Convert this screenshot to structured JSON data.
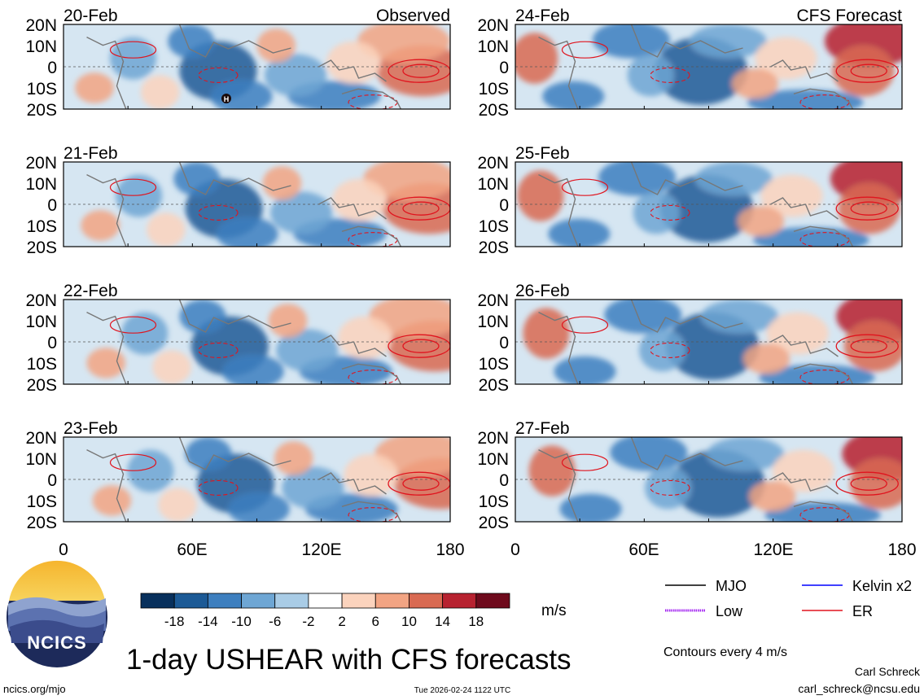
{
  "chart_data": {
    "type": "heatmap",
    "title": "1-day USHEAR with CFS forecasts",
    "variable": "USHEAR",
    "units": "m/s",
    "contour_note": "Contours every 4 m/s",
    "lat_ticks": [
      "20N",
      "10N",
      "0",
      "10S",
      "20S"
    ],
    "lon_ticks": [
      "0",
      "60E",
      "120E",
      "180"
    ],
    "lon_range": [
      0,
      180
    ],
    "lat_range": [
      -20,
      20
    ],
    "columns": [
      {
        "tag": "Observed",
        "dates": [
          "20-Feb",
          "21-Feb",
          "22-Feb",
          "23-Feb"
        ]
      },
      {
        "tag": "CFS Forecast",
        "dates": [
          "24-Feb",
          "25-Feb",
          "26-Feb",
          "27-Feb"
        ]
      }
    ],
    "colorbar": {
      "ticks": [
        "-18",
        "-14",
        "-10",
        "-6",
        "-2",
        "2",
        "6",
        "10",
        "14",
        "18"
      ],
      "colors": [
        "#08305c",
        "#1c5a96",
        "#3d7fbf",
        "#6ea6d4",
        "#a9cce6",
        "#ffffff",
        "#fbd3bd",
        "#f2a483",
        "#d96a52",
        "#b72230",
        "#6e0a1c"
      ]
    },
    "legend": [
      {
        "label": "MJO",
        "color": "#000000",
        "style": "solid"
      },
      {
        "label": "Kelvin x2",
        "color": "#0000ff",
        "style": "solid"
      },
      {
        "label": "Low",
        "color": "#a020f0",
        "style": "hatched"
      },
      {
        "label": "ER",
        "color": "#e0141e",
        "style": "solid"
      }
    ],
    "marker": "H"
  },
  "footer": {
    "logo_text": "NCICS",
    "site": "ncics.org/mjo",
    "timestamp": "Tue 2026-02-24 1122 UTC",
    "author": "Carl Schreck",
    "email": "carl_schreck@ncsu.edu"
  }
}
